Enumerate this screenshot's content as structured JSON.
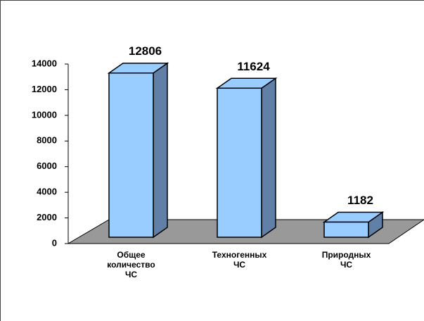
{
  "chart_data": {
    "type": "bar3d",
    "categories": [
      "Общее\nколичество\nЧС",
      "Техногенных\nЧС",
      "Природных\nЧС"
    ],
    "values": [
      12806,
      11624,
      1182
    ],
    "color": "#99ccff",
    "side_color": "#6180a8",
    "floor_color": "#999999",
    "ylim": [
      0,
      14000
    ],
    "yticks": [
      0,
      2000,
      4000,
      6000,
      8000,
      10000,
      12000,
      14000
    ]
  }
}
